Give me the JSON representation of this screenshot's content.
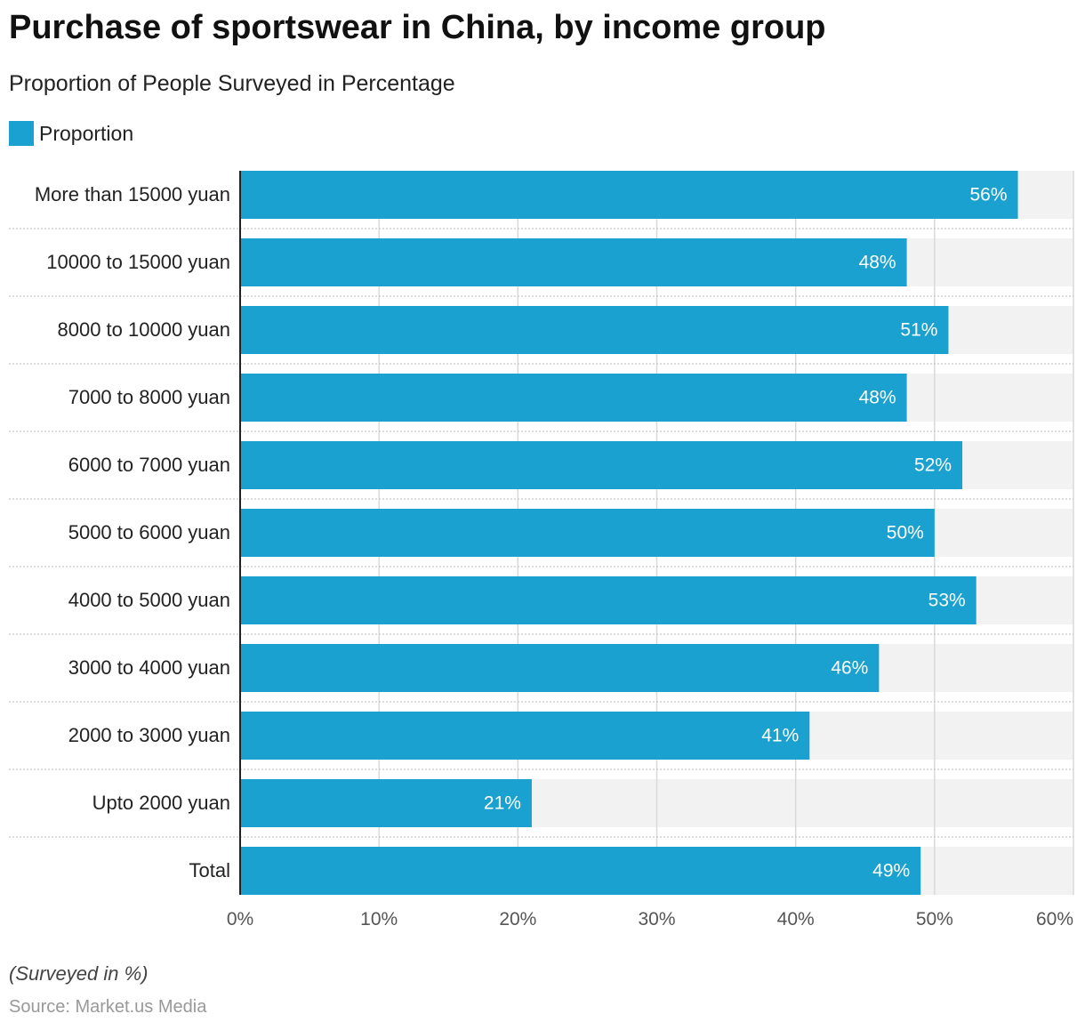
{
  "header": {
    "title": "Purchase of sportswear in China, by income group",
    "subtitle": "Proportion of People Surveyed in Percentage"
  },
  "legend": {
    "label": "Proportion",
    "color": "#1ba1cf"
  },
  "footer": {
    "note": "(Surveyed in %)",
    "source": "Source: Market.us Media"
  },
  "colors": {
    "bar": "#1ba1cf",
    "track": "#f2f2f2",
    "grid": "#d9d9d9",
    "axis": "#222222",
    "value_label": "#ffffff"
  },
  "chart_data": {
    "type": "bar",
    "orientation": "horizontal",
    "categories": [
      "More than 15000 yuan",
      "10000 to 15000 yuan",
      "8000 to 10000 yuan",
      "7000 to 8000 yuan",
      "6000 to 7000 yuan",
      "5000 to 6000 yuan",
      "4000 to 5000 yuan",
      "3000 to 4000 yuan",
      "2000 to 3000 yuan",
      "Upto 2000 yuan",
      "Total"
    ],
    "series": [
      {
        "name": "Proportion",
        "values": [
          56,
          48,
          51,
          48,
          52,
          50,
          53,
          46,
          41,
          21,
          49
        ]
      }
    ],
    "value_labels": [
      "56%",
      "48%",
      "51%",
      "48%",
      "52%",
      "50%",
      "53%",
      "46%",
      "41%",
      "21%",
      "49%"
    ],
    "xlim": [
      0,
      60
    ],
    "xticks": [
      "0%",
      "10%",
      "20%",
      "30%",
      "40%",
      "50%",
      "60%"
    ],
    "grid": true,
    "legend_position": "top-left"
  }
}
